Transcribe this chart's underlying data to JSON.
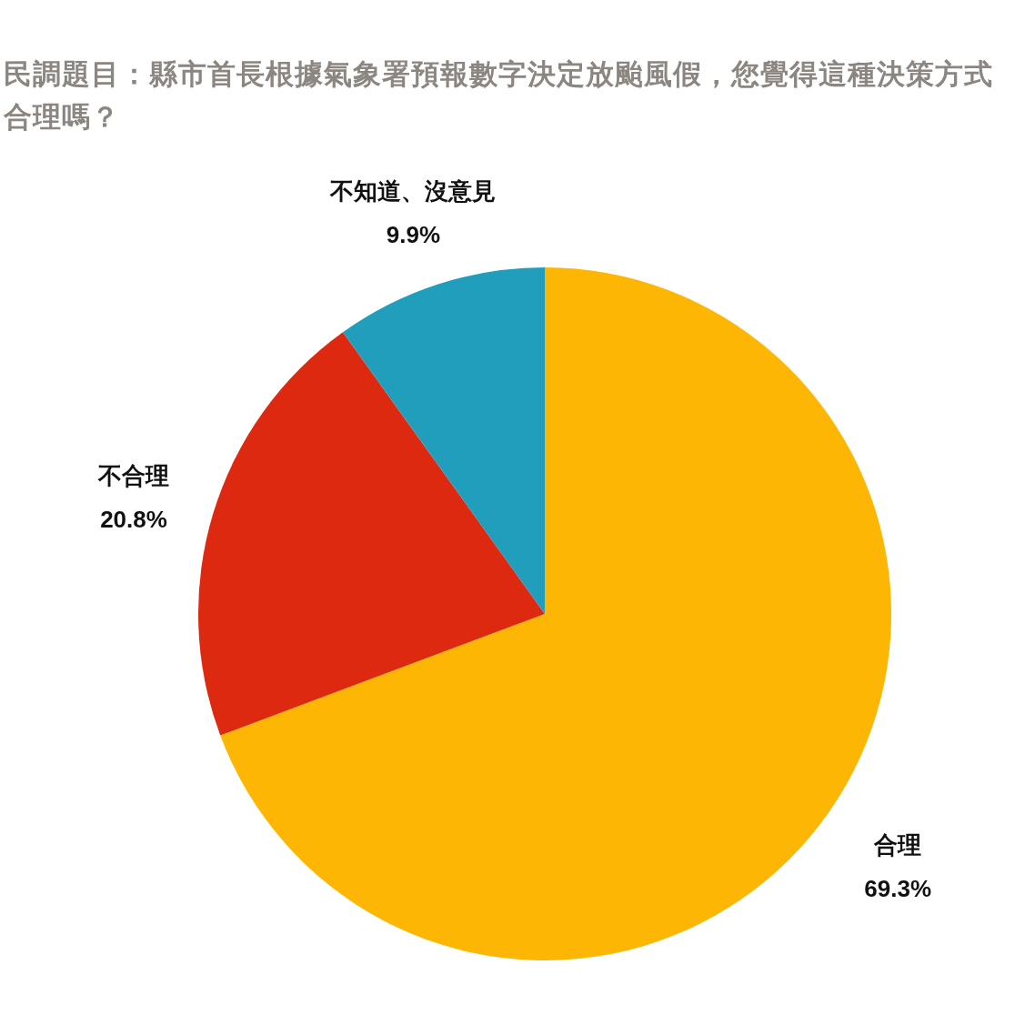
{
  "chart_data": {
    "type": "pie",
    "title": "民調題目：縣市首長根據氣象署預報數字決定放颱風假，您覺得這種決策方式合理嗎？",
    "categories": [
      "合理",
      "不合理",
      "不知道、沒意見"
    ],
    "values": [
      69.3,
      20.8,
      9.9
    ],
    "colors": [
      "#fdb604",
      "#dc2910",
      "#219ebc"
    ],
    "value_labels": [
      "69.3%",
      "20.8%",
      "9.9%"
    ]
  }
}
